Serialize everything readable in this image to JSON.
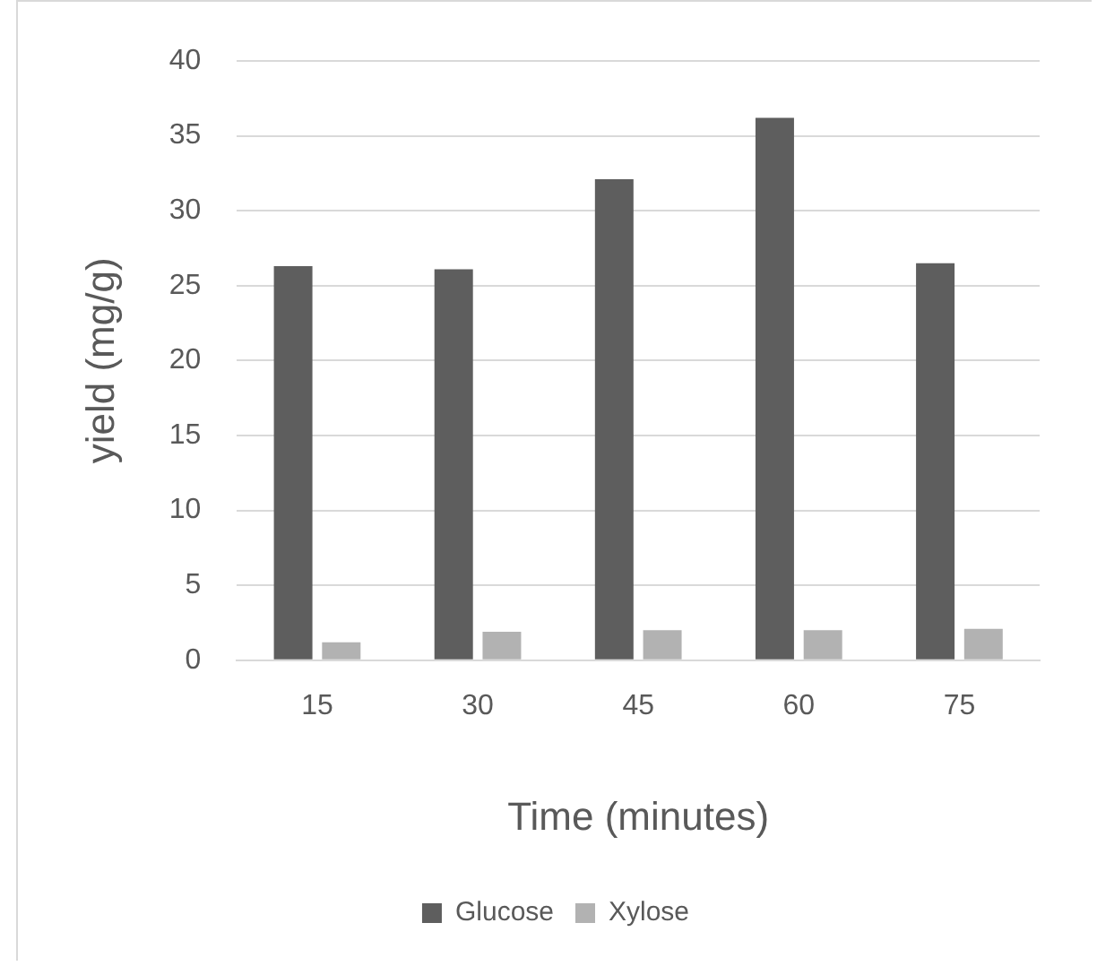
{
  "chart_data": {
    "type": "bar",
    "xlabel": "Time (minutes)",
    "ylabel": "yield (mg/g)",
    "categories": [
      "15",
      "30",
      "45",
      "60",
      "75"
    ],
    "series": [
      {
        "name": "Glucose",
        "color": "#5e5e5e",
        "values": [
          26.3,
          26.1,
          32.1,
          36.2,
          26.5
        ]
      },
      {
        "name": "Xylose",
        "color": "#b2b2b2",
        "values": [
          1.2,
          1.9,
          2.0,
          2.0,
          2.1
        ]
      }
    ],
    "ylim": [
      0,
      40
    ],
    "yticks": [
      0,
      5,
      10,
      15,
      20,
      25,
      30,
      35,
      40
    ],
    "grid": "y",
    "legend": "bottom"
  }
}
